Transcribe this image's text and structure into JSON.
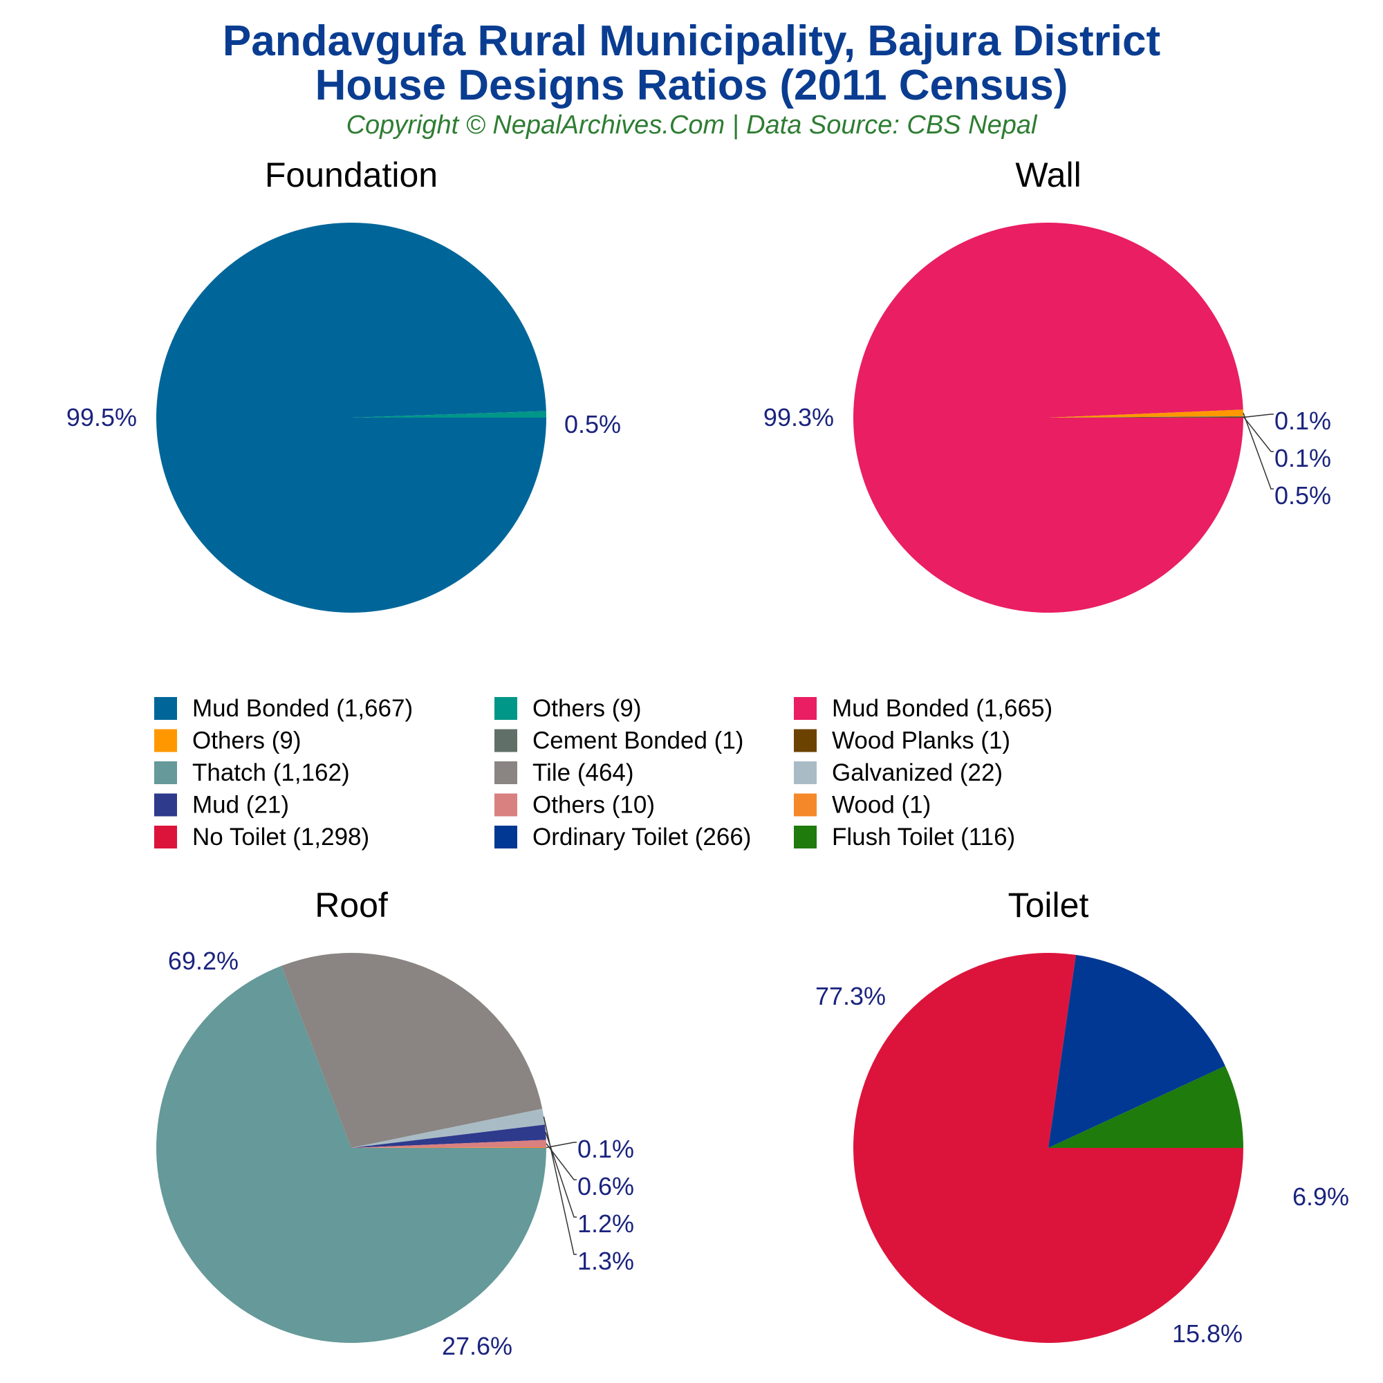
{
  "header": {
    "title_line1": "Pandavgufa Rural Municipality, Bajura District",
    "title_line2": "House Designs Ratios (2011 Census)",
    "subtitle": "Copyright © NepalArchives.Com | Data Source: CBS Nepal"
  },
  "colors": {
    "title": "#0a3d91",
    "subtitle": "#2e7d32",
    "label": "#1a237e",
    "leader": "#333333"
  },
  "chart_data": [
    {
      "type": "pie",
      "title": "Foundation",
      "slices": [
        {
          "name": "Mud Bonded",
          "value": 1667,
          "label": "99.5%",
          "color": "#006699"
        },
        {
          "name": "Others",
          "value": 9,
          "label": "0.5%",
          "color": "#009688"
        }
      ]
    },
    {
      "type": "pie",
      "title": "Wall",
      "slices": [
        {
          "name": "Mud Bonded",
          "value": 1665,
          "label": "99.3%",
          "color": "#e91e63"
        },
        {
          "name": "Others",
          "value": 9,
          "label": "0.5%",
          "color": "#ff9800"
        },
        {
          "name": "Cement Bonded",
          "value": 1,
          "label": "0.1%",
          "color": "#607068"
        },
        {
          "name": "Wood Planks",
          "value": 1,
          "label": "0.1%",
          "color": "#6b4200"
        }
      ]
    },
    {
      "type": "pie",
      "title": "Roof",
      "slices": [
        {
          "name": "Thatch",
          "value": 1162,
          "label": "69.2%",
          "color": "#669999"
        },
        {
          "name": "Tile",
          "value": 464,
          "label": "27.6%",
          "color": "#8a8582"
        },
        {
          "name": "Galvanized",
          "value": 22,
          "label": "1.3%",
          "color": "#a9bcc6"
        },
        {
          "name": "Mud",
          "value": 21,
          "label": "1.2%",
          "color": "#2e3a8c"
        },
        {
          "name": "Others",
          "value": 10,
          "label": "0.6%",
          "color": "#d98080"
        },
        {
          "name": "Wood",
          "value": 1,
          "label": "0.1%",
          "color": "#f5892a"
        }
      ]
    },
    {
      "type": "pie",
      "title": "Toilet",
      "slices": [
        {
          "name": "No Toilet",
          "value": 1298,
          "label": "77.3%",
          "color": "#dc143c"
        },
        {
          "name": "Ordinary Toilet",
          "value": 266,
          "label": "15.8%",
          "color": "#003893"
        },
        {
          "name": "Flush Toilet",
          "value": 116,
          "label": "6.9%",
          "color": "#1e7b0c"
        }
      ]
    }
  ],
  "legend": {
    "placement": "center",
    "items": [
      {
        "label": "Mud Bonded (1,667)",
        "color": "#006699"
      },
      {
        "label": "Others (9)",
        "color": "#009688"
      },
      {
        "label": "Mud Bonded (1,665)",
        "color": "#e91e63"
      },
      {
        "label": "Others (9)",
        "color": "#ff9800"
      },
      {
        "label": "Cement Bonded (1)",
        "color": "#607068"
      },
      {
        "label": "Wood Planks (1)",
        "color": "#6b4200"
      },
      {
        "label": "Thatch (1,162)",
        "color": "#669999"
      },
      {
        "label": "Tile (464)",
        "color": "#8a8582"
      },
      {
        "label": "Galvanized (22)",
        "color": "#a9bcc6"
      },
      {
        "label": "Mud (21)",
        "color": "#2e3a8c"
      },
      {
        "label": "Others (10)",
        "color": "#d98080"
      },
      {
        "label": "Wood (1)",
        "color": "#f5892a"
      },
      {
        "label": "No Toilet (1,298)",
        "color": "#dc143c"
      },
      {
        "label": "Ordinary Toilet (266)",
        "color": "#003893"
      },
      {
        "label": "Flush Toilet (116)",
        "color": "#1e7b0c"
      }
    ]
  }
}
